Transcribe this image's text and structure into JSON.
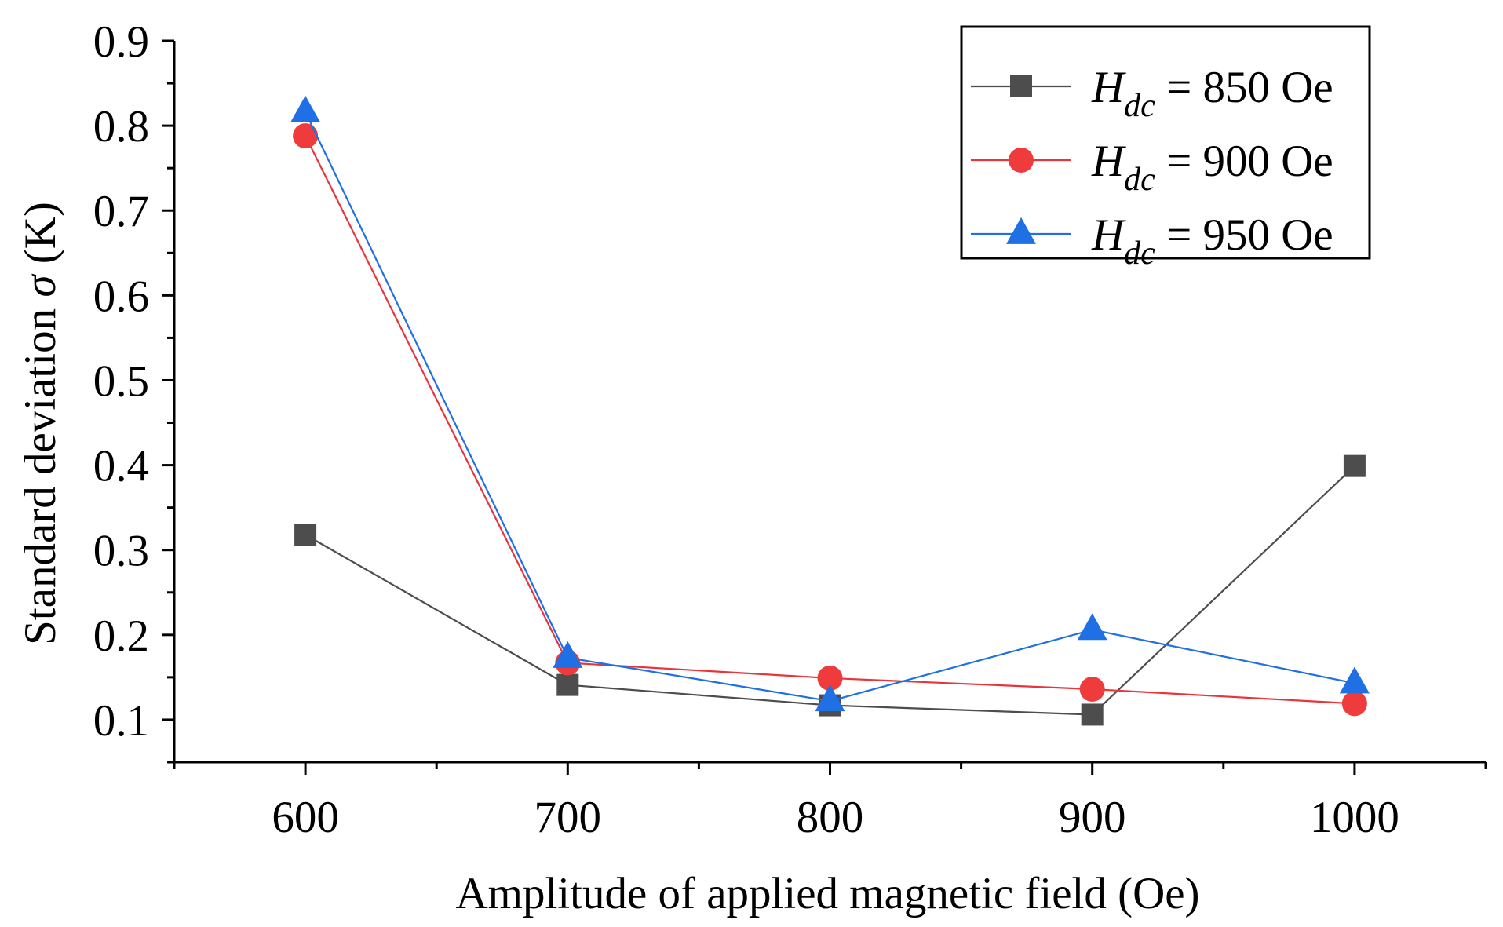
{
  "chart_data": {
    "type": "line",
    "title": "",
    "xlabel": "Amplitude of applied magnetic field  (Oe)",
    "ylabel_prefix": "Standard deviation ",
    "ylabel_symbol": "σ",
    "ylabel_suffix": " (K)",
    "xlim": [
      550,
      1050
    ],
    "ylim": [
      0.05,
      0.9
    ],
    "x": [
      600,
      700,
      800,
      900,
      1000
    ],
    "x_tick_labels": [
      "600",
      "700",
      "800",
      "900",
      "1000"
    ],
    "x_minor_ticks": [
      550,
      650,
      750,
      850,
      950,
      1050
    ],
    "y_ticks": [
      0.1,
      0.2,
      0.3,
      0.4,
      0.5,
      0.6,
      0.7,
      0.8,
      0.9
    ],
    "y_tick_labels": [
      "0.1",
      "0.2",
      "0.3",
      "0.4",
      "0.5",
      "0.6",
      "0.7",
      "0.8",
      "0.9"
    ],
    "y_minor_ticks": [
      0.05,
      0.15,
      0.25,
      0.35,
      0.45,
      0.55,
      0.65,
      0.75,
      0.85
    ],
    "grid": false,
    "legend_position": "top-right",
    "series": [
      {
        "name": "H_dc = 850 Oe",
        "label_symbol": "H",
        "label_subscript": "dc",
        "label_rest": " = 850 Oe",
        "color": "#4d4d4d",
        "line_color": "#4d4d4d",
        "marker": "square",
        "values": [
          0.318,
          0.141,
          0.117,
          0.106,
          0.399
        ]
      },
      {
        "name": "H_dc = 900 Oe",
        "label_symbol": "H",
        "label_subscript": "dc",
        "label_rest": " = 900 Oe",
        "color": "#ef3b3b",
        "line_color": "#e8343b",
        "marker": "circle",
        "values": [
          0.788,
          0.167,
          0.149,
          0.136,
          0.119
        ]
      },
      {
        "name": "H_dc = 950 Oe",
        "label_symbol": "H",
        "label_subscript": "dc",
        "label_rest": " = 950 Oe",
        "color": "#1f6fe5",
        "line_color": "#1f6fe5",
        "marker": "triangle",
        "values": [
          0.816,
          0.173,
          0.122,
          0.206,
          0.143
        ]
      }
    ]
  }
}
